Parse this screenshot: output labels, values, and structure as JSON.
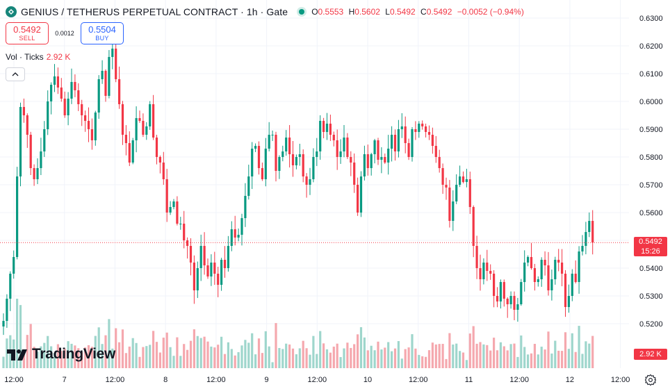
{
  "header": {
    "title": "GENIUS / TETHERUS PERPETUAL CONTRACT · 1h · Gate",
    "ohlc": {
      "o_label": "O",
      "o": "0.5553",
      "h_label": "H",
      "h": "0.5602",
      "l_label": "L",
      "l": "0.5492",
      "c_label": "C",
      "c": "0.5492",
      "change": "−0.0052 (−0.94%)"
    }
  },
  "trade": {
    "sell_price": "0.5492",
    "sell_label": "SELL",
    "spread": "0.0012",
    "buy_price": "0.5504",
    "buy_label": "BUY"
  },
  "volume_legend": {
    "label": "Vol · Ticks",
    "value": "2.92 K"
  },
  "price_tag": {
    "price": "0.5492",
    "countdown": "15:26"
  },
  "volume_tag": "2.92 K",
  "logo_text": "TradingView",
  "colors": {
    "up": "#089981",
    "down": "#f23645",
    "up_vol": "#9ed6cc",
    "down_vol": "#f5a8ae",
    "buy": "#2962ff"
  },
  "chart_data": {
    "type": "candlestick",
    "timeframe": "1h",
    "y_axis": {
      "ticks": [
        "0.6300",
        "0.6200",
        "0.6100",
        "0.6000",
        "0.5900",
        "0.5800",
        "0.5700",
        "0.5600",
        "0.5500",
        "0.5400",
        "0.5300",
        "0.5200"
      ],
      "ylim": [
        0.51,
        0.634
      ]
    },
    "x_axis": {
      "ticks": [
        "12:00",
        "7",
        "12:00",
        "8",
        "12:00",
        "9",
        "12:00",
        "10",
        "12:00",
        "11",
        "12:00",
        "12",
        "12:00"
      ]
    },
    "last_price": 0.5492,
    "series": [
      {
        "name": "Price",
        "close": [
          0.521,
          0.529,
          0.538,
          0.544,
          0.573,
          0.598,
          0.595,
          0.588,
          0.576,
          0.572,
          0.576,
          0.582,
          0.59,
          0.6,
          0.606,
          0.609,
          0.605,
          0.601,
          0.595,
          0.601,
          0.607,
          0.604,
          0.599,
          0.595,
          0.593,
          0.59,
          0.586,
          0.596,
          0.608,
          0.611,
          0.602,
          0.616,
          0.619,
          0.608,
          0.599,
          0.588,
          0.585,
          0.578,
          0.586,
          0.594,
          0.593,
          0.588,
          0.591,
          0.599,
          0.587,
          0.58,
          0.578,
          0.572,
          0.56,
          0.562,
          0.564,
          0.556,
          0.556,
          0.55,
          0.548,
          0.542,
          0.532,
          0.54,
          0.548,
          0.541,
          0.537,
          0.542,
          0.538,
          0.534,
          0.543,
          0.54,
          0.548,
          0.554,
          0.551,
          0.552,
          0.558,
          0.566,
          0.573,
          0.583,
          0.584,
          0.576,
          0.572,
          0.583,
          0.588,
          0.588,
          0.575,
          0.58,
          0.582,
          0.587,
          0.581,
          0.577,
          0.58,
          0.581,
          0.573,
          0.57,
          0.572,
          0.58,
          0.582,
          0.593,
          0.589,
          0.592,
          0.588,
          0.586,
          0.58,
          0.582,
          0.587,
          0.58,
          0.578,
          0.57,
          0.56,
          0.573,
          0.581,
          0.576,
          0.581,
          0.586,
          0.579,
          0.58,
          0.578,
          0.583,
          0.588,
          0.582,
          0.59,
          0.591,
          0.585,
          0.58,
          0.59,
          0.589,
          0.592,
          0.591,
          0.589,
          0.588,
          0.584,
          0.58,
          0.576,
          0.57,
          0.569,
          0.557,
          0.564,
          0.57,
          0.573,
          0.571,
          0.572,
          0.562,
          0.548,
          0.54,
          0.536,
          0.542,
          0.539,
          0.538,
          0.53,
          0.528,
          0.535,
          0.529,
          0.527,
          0.53,
          0.525,
          0.527,
          0.535,
          0.542,
          0.544,
          0.54,
          0.535,
          0.536,
          0.543,
          0.541,
          0.532,
          0.536,
          0.543,
          0.542,
          0.538,
          0.526,
          0.53,
          0.538,
          0.535,
          0.546,
          0.548,
          0.553,
          0.557,
          0.5492
        ]
      }
    ]
  }
}
